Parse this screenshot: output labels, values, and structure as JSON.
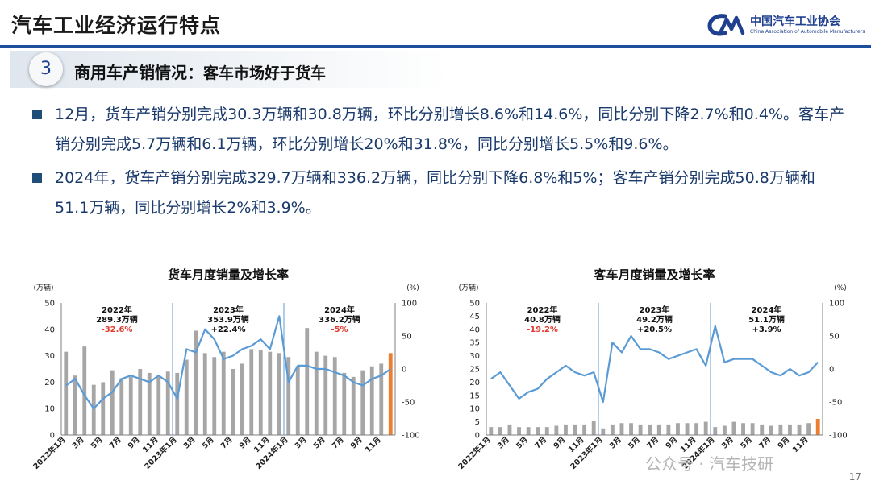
{
  "title": "汽车工业经济运行特点",
  "logo": {
    "cn": "中国汽车工业协会",
    "en": "China Association of Automobile Manufacturers"
  },
  "section": {
    "number": "3",
    "title": "商用车产销情况：",
    "subtitle": "客车市场好于货车"
  },
  "bullets": [
    "12月，货车产销分别完成30.3万辆和30.8万辆，环比分别增长8.6%和14.6%，同比分别下降2.7%和0.4%。客车产销分别完成5.7万辆和6.1万辆，环比分别增长20%和31.8%，同比分别增长5.5%和9.6%。",
    "2024年，货车产销分别完成329.7万辆和336.2万辆，同比分别下降6.8%和5%；客车产销分别完成50.8万辆和51.1万辆，同比分别增长2%和3.9%。"
  ],
  "watermark": "公众号 · 汽车技研",
  "page_number": "17",
  "colors": {
    "bar": "#a6a6a6",
    "bar_highlight": "#ed7d31",
    "line": "#5b9bd5",
    "divider": "#5b9bd5",
    "growth_negative": "#e03c31"
  },
  "chart_data": [
    {
      "type": "bar",
      "title": "货车月度销量及增长率",
      "ylabel_left": "(万辆)",
      "ylabel_right": "(%)",
      "ylim": [
        0,
        50
      ],
      "ylim_right": [
        -100,
        100
      ],
      "yticks_left": [
        "0",
        "10",
        "20",
        "30",
        "40",
        "50"
      ],
      "yticks_right": [
        "-100",
        "-50",
        "0",
        "50",
        "100"
      ],
      "x_labels": [
        "2022年1月",
        "",
        "3月",
        "",
        "5月",
        "",
        "7月",
        "",
        "9月",
        "",
        "11月",
        "",
        "2023年1月",
        "",
        "3月",
        "",
        "5月",
        "",
        "7月",
        "",
        "9月",
        "",
        "11月",
        "",
        "2024年1月",
        "",
        "3月",
        "",
        "5月",
        "",
        "7月",
        "",
        "9月",
        "",
        "11月",
        ""
      ],
      "series": [
        {
          "name": "销量",
          "kind": "bar",
          "values": [
            31.5,
            22.5,
            33.5,
            19,
            20,
            24.5,
            21.5,
            22,
            25,
            23.5,
            22,
            24,
            23.5,
            28.5,
            39.5,
            31,
            29.5,
            31.5,
            25,
            27,
            32.5,
            32,
            31.5,
            31,
            29.5,
            26,
            40.5,
            31.5,
            30,
            29.5,
            23.5,
            22,
            24.5,
            26,
            27,
            31
          ]
        },
        {
          "name": "增长率",
          "kind": "line",
          "values": [
            -25,
            -15,
            -40,
            -60,
            -45,
            -35,
            -15,
            -10,
            -15,
            -20,
            -10,
            -20,
            -45,
            30,
            25,
            60,
            45,
            15,
            20,
            30,
            35,
            45,
            30,
            80,
            -20,
            5,
            5,
            0,
            0,
            -5,
            -10,
            -20,
            -25,
            -15,
            -10,
            0
          ]
        }
      ],
      "annotations": [
        {
          "year": "2022年",
          "total": "289.3万辆",
          "growth": "-32.6%"
        },
        {
          "year": "2023年",
          "total": "353.9万辆",
          "growth": "+22.4%"
        },
        {
          "year": "2024年",
          "total": "336.2万辆",
          "growth": "-5%"
        }
      ]
    },
    {
      "type": "bar",
      "title": "客车月度销量及增长率",
      "ylabel_left": "(万辆)",
      "ylabel_right": "(%)",
      "ylim": [
        0,
        50
      ],
      "ylim_right": [
        -100,
        100
      ],
      "yticks_left": [
        "0",
        "5",
        "10",
        "15",
        "20",
        "25",
        "30",
        "35",
        "40",
        "45",
        "50"
      ],
      "yticks_right": [
        "-100",
        "-50",
        "0",
        "50",
        "100"
      ],
      "x_labels": [
        "2022年1月",
        "",
        "3月",
        "",
        "5月",
        "",
        "7月",
        "",
        "9月",
        "",
        "11月",
        "",
        "2023年1月",
        "",
        "3月",
        "",
        "5月",
        "",
        "7月",
        "",
        "9月",
        "",
        "11月",
        "",
        "2024年1月",
        "",
        "3月",
        "",
        "5月",
        "",
        "7月",
        "",
        "9月",
        "",
        "11月",
        ""
      ],
      "series": [
        {
          "name": "销量",
          "kind": "bar",
          "values": [
            3,
            3,
            4,
            3,
            3,
            3,
            3,
            3.5,
            4,
            4,
            4,
            5.5,
            2.5,
            4,
            4.5,
            4.5,
            4,
            4,
            4,
            4,
            4.5,
            4.5,
            4.5,
            5,
            3,
            3.5,
            5,
            4.5,
            4.5,
            4,
            3.5,
            4,
            4,
            4,
            4.5,
            6.1
          ]
        },
        {
          "name": "增长率",
          "kind": "line",
          "values": [
            -15,
            -5,
            -25,
            -45,
            -35,
            -30,
            -15,
            -5,
            5,
            -5,
            -10,
            -5,
            -50,
            40,
            25,
            50,
            30,
            30,
            25,
            15,
            20,
            25,
            30,
            5,
            65,
            10,
            15,
            15,
            15,
            5,
            -5,
            -10,
            0,
            -10,
            -5,
            10
          ]
        }
      ],
      "annotations": [
        {
          "year": "2022年",
          "total": "40.8万辆",
          "growth": "-19.2%"
        },
        {
          "year": "2023年",
          "total": "49.2万辆",
          "growth": "+20.5%"
        },
        {
          "year": "2024年",
          "total": "51.1万辆",
          "growth": "+3.9%"
        }
      ]
    }
  ]
}
